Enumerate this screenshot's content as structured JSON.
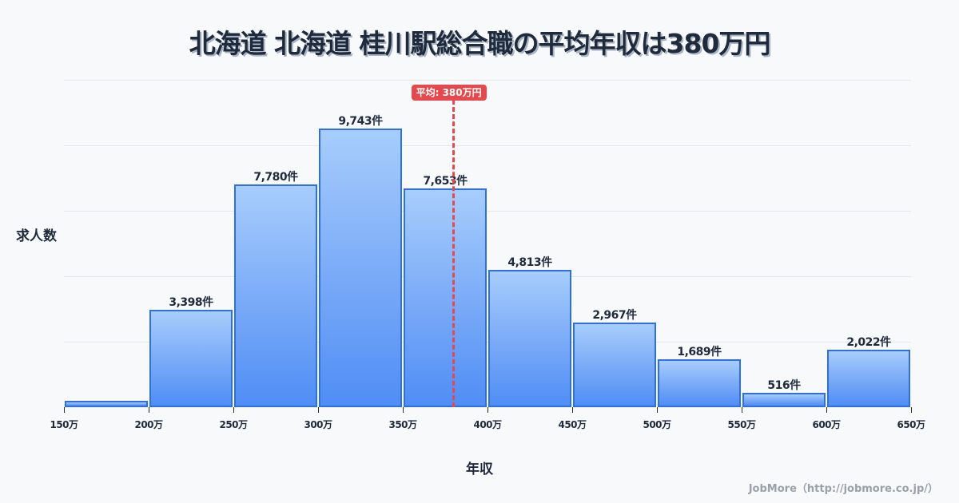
{
  "title": "北海道 北海道 桂川駅総合職の平均年収は380万円",
  "axis": {
    "ylabel": "求人数",
    "xlabel": "年収"
  },
  "average": {
    "label": "平均: 380万円",
    "value": 380
  },
  "footer": "JobMore（http://jobmore.co.jp/）",
  "colors": {
    "bar_border": "#2f6fe0",
    "bar_top": "#a7cdfc",
    "bar_bottom": "#4f8ef5",
    "average_line": "#e5484d",
    "text": "#1f2a3d"
  },
  "chart_data": {
    "type": "bar",
    "title": "北海道 北海道 桂川駅総合職の平均年収は380万円",
    "xlabel": "年収",
    "ylabel": "求人数",
    "categories": [
      "150-200万",
      "200-250万",
      "250-300万",
      "300-350万",
      "350-400万",
      "400-450万",
      "450-500万",
      "500-550万",
      "550-600万",
      "600-650万"
    ],
    "values": [
      220,
      3398,
      7780,
      9743,
      7653,
      4813,
      2967,
      1689,
      516,
      2022
    ],
    "labels": [
      "",
      "3,398件",
      "7,780件",
      "9,743件",
      "7,653件",
      "4,813件",
      "2,967件",
      "1,689件",
      "516件",
      "2,022件"
    ],
    "x_ticks": [
      "150万",
      "200万",
      "250万",
      "300万",
      "350万",
      "400万",
      "450万",
      "500万",
      "550万",
      "600万",
      "650万"
    ],
    "xlim": [
      150,
      650
    ],
    "ylim": [
      0,
      11450
    ],
    "grid": true,
    "annotations": [
      {
        "type": "vline",
        "x": 380,
        "label": "平均: 380万円"
      }
    ]
  }
}
